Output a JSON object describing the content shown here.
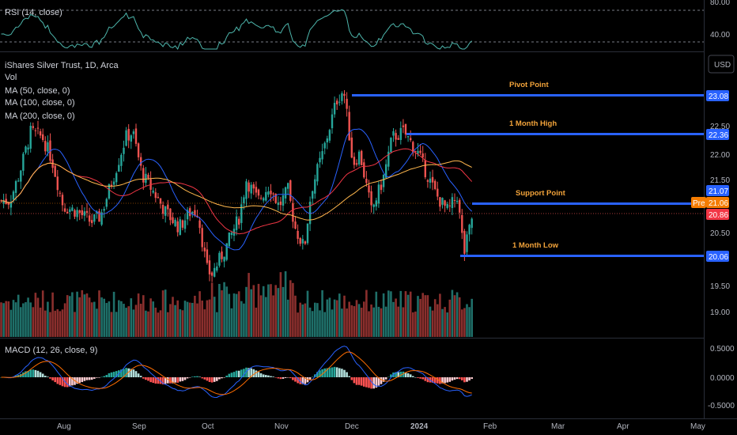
{
  "rsi": {
    "label": "RSI (14, close)",
    "ticks": [
      "80.00",
      "40.00"
    ]
  },
  "main": {
    "title": "iShares Silver Trust, 1D, Arca",
    "vol_label": "Vol",
    "ma_labels": [
      "MA (50, close, 0)",
      "MA (100, close, 0)",
      "MA (200, close, 0)"
    ],
    "currency": "USD",
    "price_ticks": [
      "22.50",
      "22.00",
      "21.50",
      "20.50",
      "19.50",
      "19.00"
    ]
  },
  "macd": {
    "label": "MACD (12, 26, close, 9)",
    "ticks": [
      "0.5000",
      "0.0000",
      "-0.5000"
    ]
  },
  "x_axis": {
    "labels": [
      "Aug",
      "Sep",
      "Oct",
      "Nov",
      "Dec",
      "2024",
      "Feb",
      "Mar",
      "Apr",
      "May"
    ]
  },
  "levels": [
    {
      "name": "Pivot Point",
      "price": "23.08"
    },
    {
      "name": "1 Month High",
      "price": "22.36"
    },
    {
      "name": "Support Point",
      "price": "21.07"
    },
    {
      "name": "1 Month Low",
      "price": "20.06"
    }
  ],
  "badges": {
    "pre_label": "Pre",
    "pre_price": "21.06",
    "last_price": "20.86"
  },
  "colors": {
    "background": "#000000",
    "up": "#26a69a",
    "down": "#ef5350",
    "level_line": "#2962ff",
    "annotation": "#f2a33a",
    "ma50": "#2962ff",
    "ma100": "#f23645",
    "ma200": "#ffb74d",
    "rsi_line": "#4db6ac",
    "macd_line": "#2962ff",
    "signal_line": "#ff6d00"
  },
  "chart_data": {
    "type": "candlestick",
    "symbol": "iShares Silver Trust",
    "interval": "1D",
    "exchange": "Arca",
    "x_range": [
      "2023-07-10",
      "2024-05-01"
    ],
    "y_range": [
      18.6,
      23.8
    ],
    "close_path": [
      [
        "2023-07-10",
        21.1
      ],
      [
        "2023-07-14",
        21.6
      ],
      [
        "2023-07-19",
        22.4
      ],
      [
        "2023-07-24",
        22.3
      ],
      [
        "2023-07-28",
        21.9
      ],
      [
        "2023-08-02",
        21.0
      ],
      [
        "2023-08-08",
        20.9
      ],
      [
        "2023-08-14",
        20.7
      ],
      [
        "2023-08-18",
        20.8
      ],
      [
        "2023-08-24",
        21.6
      ],
      [
        "2023-08-29",
        22.3
      ],
      [
        "2023-09-01",
        22.4
      ],
      [
        "2023-09-05",
        21.6
      ],
      [
        "2023-09-11",
        21.2
      ],
      [
        "2023-09-15",
        20.9
      ],
      [
        "2023-09-21",
        20.6
      ],
      [
        "2023-09-26",
        20.9
      ],
      [
        "2023-09-29",
        20.9
      ],
      [
        "2023-10-03",
        19.8
      ],
      [
        "2023-10-05",
        19.7
      ],
      [
        "2023-10-11",
        20.2
      ],
      [
        "2023-10-17",
        20.8
      ],
      [
        "2023-10-20",
        21.5
      ],
      [
        "2023-10-25",
        21.1
      ],
      [
        "2023-10-30",
        21.4
      ],
      [
        "2023-11-03",
        21.0
      ],
      [
        "2023-11-07",
        21.3
      ],
      [
        "2023-11-10",
        20.6
      ],
      [
        "2023-11-14",
        20.2
      ],
      [
        "2023-11-17",
        21.3
      ],
      [
        "2023-11-22",
        22.0
      ],
      [
        "2023-11-28",
        23.0
      ],
      [
        "2023-12-01",
        23.2
      ],
      [
        "2023-12-05",
        21.8
      ],
      [
        "2023-12-08",
        22.0
      ],
      [
        "2023-12-13",
        20.9
      ],
      [
        "2023-12-18",
        21.5
      ],
      [
        "2023-12-22",
        22.3
      ],
      [
        "2023-12-27",
        22.4
      ],
      [
        "2024-01-02",
        22.0
      ],
      [
        "2024-01-05",
        21.7
      ],
      [
        "2024-01-10",
        21.2
      ],
      [
        "2024-01-15",
        20.9
      ],
      [
        "2024-01-19",
        21.2
      ],
      [
        "2024-01-22",
        20.1
      ],
      [
        "2024-01-24",
        20.5
      ],
      [
        "2024-01-26",
        20.9
      ]
    ]
  }
}
